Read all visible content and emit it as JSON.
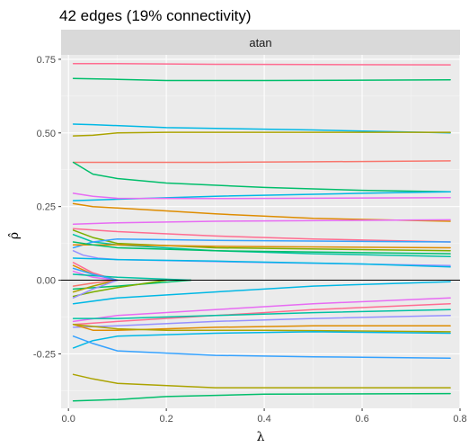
{
  "chart_data": {
    "type": "line",
    "title": "42 edges (19% connectivity)",
    "facet_label": "atan",
    "xlabel": "λ",
    "ylabel": "ρ̂",
    "xlim": [
      -0.015,
      0.8
    ],
    "ylim": [
      -0.435,
      0.765
    ],
    "x_ticks": [
      0.0,
      0.2,
      0.4,
      0.6,
      0.8
    ],
    "x_tick_labels": [
      "0.0",
      "0.2",
      "0.4",
      "0.6",
      "0.8"
    ],
    "y_ticks": [
      -0.25,
      0.0,
      0.25,
      0.5,
      0.75
    ],
    "y_tick_labels": [
      "-0.25",
      "0.00",
      "0.25",
      "0.50",
      "0.75"
    ],
    "grid": true,
    "legend": "none",
    "reference_line": {
      "y": 0.0,
      "color": "#000000"
    },
    "series": [
      {
        "color": "#FF6C91",
        "x": [
          0.01,
          0.1,
          0.3,
          0.5,
          0.78
        ],
        "y": [
          0.735,
          0.735,
          0.733,
          0.732,
          0.731
        ]
      },
      {
        "color": "#00BE6B",
        "x": [
          0.01,
          0.1,
          0.2,
          0.4,
          0.78
        ],
        "y": [
          0.685,
          0.682,
          0.678,
          0.678,
          0.68
        ]
      },
      {
        "color": "#00B8E5",
        "x": [
          0.01,
          0.05,
          0.2,
          0.5,
          0.78
        ],
        "y": [
          0.53,
          0.528,
          0.518,
          0.51,
          0.5
        ]
      },
      {
        "color": "#ABA300",
        "x": [
          0.01,
          0.05,
          0.1,
          0.2,
          0.78
        ],
        "y": [
          0.49,
          0.492,
          0.5,
          0.502,
          0.502
        ]
      },
      {
        "color": "#F8766D",
        "x": [
          0.01,
          0.3,
          0.5,
          0.78
        ],
        "y": [
          0.4,
          0.4,
          0.402,
          0.405
        ]
      },
      {
        "color": "#00BE6B",
        "x": [
          0.01,
          0.05,
          0.1,
          0.2,
          0.4,
          0.6,
          0.78
        ],
        "y": [
          0.4,
          0.36,
          0.345,
          0.33,
          0.315,
          0.305,
          0.3
        ]
      },
      {
        "color": "#00B8E5",
        "x": [
          0.01,
          0.1,
          0.3,
          0.6,
          0.78
        ],
        "y": [
          0.27,
          0.275,
          0.285,
          0.295,
          0.3
        ]
      },
      {
        "color": "#E76BF3",
        "x": [
          0.01,
          0.05,
          0.1,
          0.3,
          0.78
        ],
        "y": [
          0.295,
          0.285,
          0.278,
          0.277,
          0.28
        ]
      },
      {
        "color": "#DE8C00",
        "x": [
          0.01,
          0.05,
          0.1,
          0.3,
          0.5,
          0.78
        ],
        "y": [
          0.26,
          0.25,
          0.245,
          0.225,
          0.21,
          0.2
        ]
      },
      {
        "color": "#E76BF3",
        "x": [
          0.01,
          0.1,
          0.3,
          0.78
        ],
        "y": [
          0.19,
          0.195,
          0.2,
          0.205
        ]
      },
      {
        "color": "#FF6C91",
        "x": [
          0.01,
          0.1,
          0.3,
          0.5,
          0.78
        ],
        "y": [
          0.175,
          0.165,
          0.15,
          0.14,
          0.13
        ]
      },
      {
        "color": "#00C1A3",
        "x": [
          0.01,
          0.05,
          0.1,
          0.3,
          0.5,
          0.78
        ],
        "y": [
          0.155,
          0.13,
          0.12,
          0.1,
          0.09,
          0.08
        ]
      },
      {
        "color": "#7CAE00",
        "x": [
          0.01,
          0.05,
          0.1,
          0.3,
          0.78
        ],
        "y": [
          0.17,
          0.145,
          0.125,
          0.11,
          0.1
        ]
      },
      {
        "color": "#35A2FF",
        "x": [
          0.01,
          0.05,
          0.1,
          0.3,
          0.78
        ],
        "y": [
          0.11,
          0.13,
          0.14,
          0.135,
          0.13
        ]
      },
      {
        "color": "#DE8C00",
        "x": [
          0.01,
          0.1,
          0.3,
          0.78
        ],
        "y": [
          0.12,
          0.12,
          0.115,
          0.11
        ]
      },
      {
        "color": "#00BE6B",
        "x": [
          0.01,
          0.05,
          0.1,
          0.3,
          0.78
        ],
        "y": [
          0.13,
          0.12,
          0.11,
          0.1,
          0.09
        ]
      },
      {
        "color": "#9590FF",
        "x": [
          0.01,
          0.03,
          0.06,
          0.1,
          0.4,
          0.78
        ],
        "y": [
          0.1,
          0.085,
          0.075,
          0.07,
          0.06,
          0.05
        ]
      },
      {
        "color": "#00B8E5",
        "x": [
          0.01,
          0.1,
          0.3,
          0.6,
          0.78
        ],
        "y": [
          0.075,
          0.07,
          0.065,
          0.055,
          0.045
        ]
      },
      {
        "color": "#FF6C91",
        "x": [
          0.01,
          0.05,
          0.1
        ],
        "y": [
          0.06,
          0.025,
          0.0
        ]
      },
      {
        "color": "#DE8C00",
        "x": [
          0.01,
          0.05,
          0.1
        ],
        "y": [
          0.05,
          0.02,
          0.0
        ]
      },
      {
        "color": "#E76BF3",
        "x": [
          0.01,
          0.05,
          0.1
        ],
        "y": [
          0.03,
          0.01,
          0.0
        ]
      },
      {
        "color": "#00C1A3",
        "x": [
          0.01,
          0.1,
          0.25
        ],
        "y": [
          0.02,
          0.01,
          0.0
        ]
      },
      {
        "color": "#35A2FF",
        "x": [
          0.01,
          0.05,
          0.1
        ],
        "y": [
          0.04,
          0.02,
          0.0
        ]
      },
      {
        "color": "#00BE6B",
        "x": [
          0.01,
          0.1,
          0.25
        ],
        "y": [
          -0.03,
          -0.02,
          0.0
        ]
      },
      {
        "color": "#7CAE00",
        "x": [
          0.01,
          0.05,
          0.1,
          0.2
        ],
        "y": [
          -0.055,
          -0.04,
          -0.025,
          0.0
        ]
      },
      {
        "color": "#ABA300",
        "x": [
          0.01,
          0.05,
          0.1
        ],
        "y": [
          -0.04,
          -0.02,
          0.0
        ]
      },
      {
        "color": "#F8766D",
        "x": [
          0.01,
          0.05,
          0.1
        ],
        "y": [
          -0.02,
          -0.01,
          0.0
        ]
      },
      {
        "color": "#9590FF",
        "x": [
          0.01,
          0.05,
          0.1
        ],
        "y": [
          -0.06,
          -0.03,
          0.0
        ]
      },
      {
        "color": "#00B8E5",
        "x": [
          0.01,
          0.1,
          0.3,
          0.5,
          0.78
        ],
        "y": [
          -0.08,
          -0.06,
          -0.04,
          -0.02,
          -0.005
        ]
      },
      {
        "color": "#E76BF3",
        "x": [
          0.01,
          0.1,
          0.3,
          0.5,
          0.78
        ],
        "y": [
          -0.14,
          -0.12,
          -0.1,
          -0.08,
          -0.06
        ]
      },
      {
        "color": "#FF6C91",
        "x": [
          0.01,
          0.1,
          0.3,
          0.5,
          0.78
        ],
        "y": [
          -0.15,
          -0.14,
          -0.12,
          -0.1,
          -0.08
        ]
      },
      {
        "color": "#00C1A3",
        "x": [
          0.01,
          0.1,
          0.3,
          0.5,
          0.78
        ],
        "y": [
          -0.13,
          -0.13,
          -0.12,
          -0.11,
          -0.1
        ]
      },
      {
        "color": "#9590FF",
        "x": [
          0.01,
          0.1,
          0.3,
          0.5,
          0.78
        ],
        "y": [
          -0.16,
          -0.155,
          -0.14,
          -0.13,
          -0.12
        ]
      },
      {
        "color": "#DE8C00",
        "x": [
          0.01,
          0.05,
          0.1,
          0.3,
          0.5,
          0.78
        ],
        "y": [
          -0.15,
          -0.17,
          -0.17,
          -0.16,
          -0.155,
          -0.155
        ]
      },
      {
        "color": "#ABA300",
        "x": [
          0.01,
          0.1,
          0.2,
          0.4,
          0.78
        ],
        "y": [
          -0.15,
          -0.165,
          -0.17,
          -0.17,
          -0.175
        ]
      },
      {
        "color": "#00B8E5",
        "x": [
          0.01,
          0.05,
          0.1,
          0.3,
          0.5,
          0.78
        ],
        "y": [
          -0.23,
          -0.205,
          -0.19,
          -0.18,
          -0.175,
          -0.18
        ]
      },
      {
        "color": "#35A2FF",
        "x": [
          0.01,
          0.05,
          0.1,
          0.3,
          0.5,
          0.78
        ],
        "y": [
          -0.19,
          -0.215,
          -0.24,
          -0.255,
          -0.26,
          -0.265
        ]
      },
      {
        "color": "#ABA300",
        "x": [
          0.01,
          0.05,
          0.1,
          0.3,
          0.5,
          0.78
        ],
        "y": [
          -0.32,
          -0.335,
          -0.35,
          -0.365,
          -0.365,
          -0.365
        ]
      },
      {
        "color": "#00BE6B",
        "x": [
          0.01,
          0.1,
          0.2,
          0.4,
          0.78
        ],
        "y": [
          -0.41,
          -0.405,
          -0.395,
          -0.387,
          -0.385
        ]
      }
    ]
  }
}
